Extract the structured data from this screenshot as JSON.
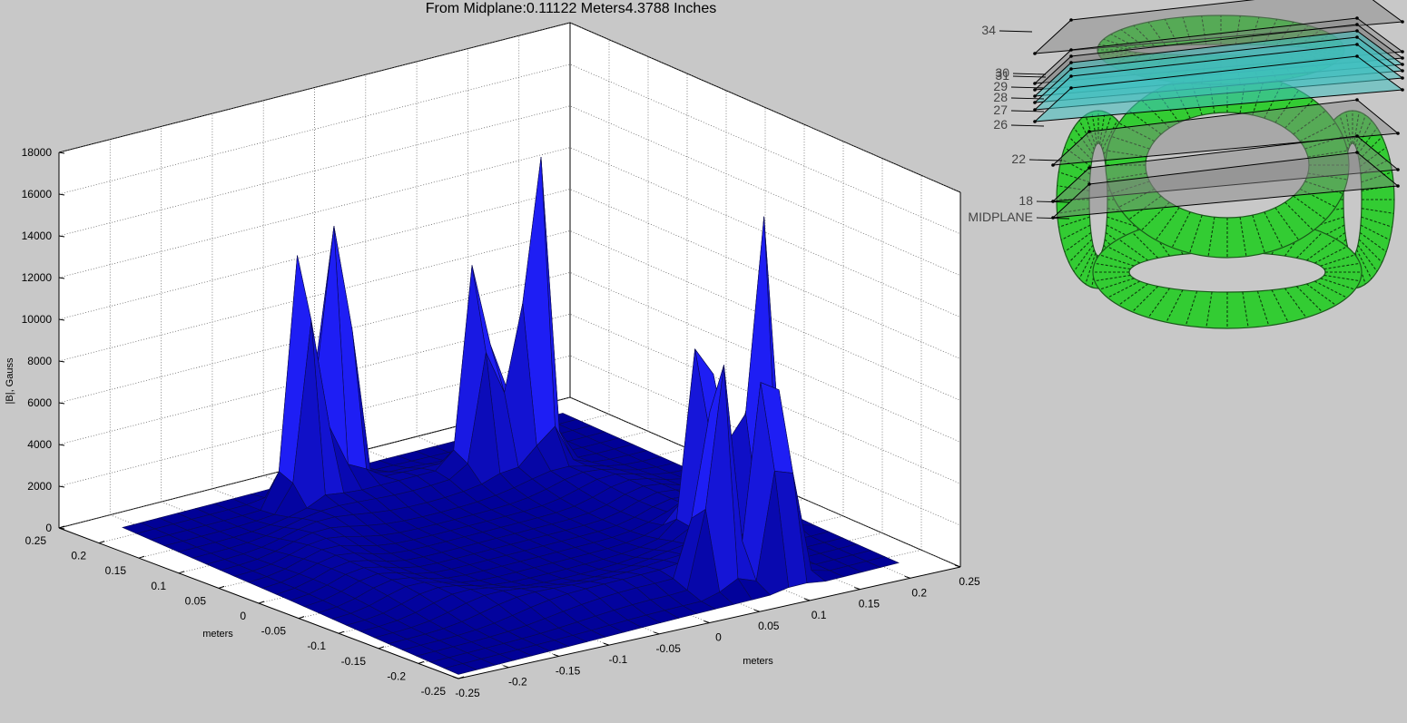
{
  "title": "From Midplane:0.11122 Meters4.3788 Inches",
  "chart_data": {
    "type": "surface",
    "title": "From Midplane:0.11122 Meters4.3788 Inches",
    "zlabel": "|B|, Gauss",
    "xlabel": "meters",
    "ylabel": "meters",
    "xlim": [
      -0.25,
      0.25
    ],
    "ylim": [
      -0.25,
      0.25
    ],
    "zlim": [
      0,
      18000
    ],
    "z_ticks": [
      "0",
      "2000",
      "4000",
      "6000",
      "8000",
      "10000",
      "12000",
      "14000",
      "16000",
      "18000"
    ],
    "x_ticks": [
      "-0.25",
      "-0.2",
      "-0.15",
      "-0.1",
      "-0.05",
      "0",
      "0.05",
      "0.1",
      "0.15",
      "0.2",
      "0.25"
    ],
    "y_ticks": [
      "0.25",
      "0.2",
      "0.15",
      "0.1",
      "0.05",
      "0",
      "-0.05",
      "-0.1",
      "-0.15",
      "-0.2",
      "-0.25"
    ],
    "grid": true,
    "color": "#1010e8",
    "peaks": [
      {
        "x": -0.08,
        "y": 0.2,
        "value": 15500
      },
      {
        "x": -0.035,
        "y": 0.215,
        "value": 17000
      },
      {
        "x": 0.09,
        "y": 0.16,
        "value": 13000
      },
      {
        "x": 0.14,
        "y": 0.15,
        "value": 17500
      },
      {
        "x": 0.155,
        "y": -0.09,
        "value": 13000
      },
      {
        "x": 0.205,
        "y": -0.1,
        "value": 16500
      },
      {
        "x": 0.08,
        "y": -0.2,
        "value": 14000
      },
      {
        "x": 0.135,
        "y": -0.215,
        "value": 15500
      }
    ]
  },
  "inset": {
    "labels": [
      "34",
      "30",
      "31",
      "29",
      "28",
      "27",
      "26",
      "22",
      "18",
      "MIDPLANE"
    ],
    "coil_color": "#33cc33",
    "plane_color": "#808080",
    "highlight_color": "#40c0c0"
  }
}
